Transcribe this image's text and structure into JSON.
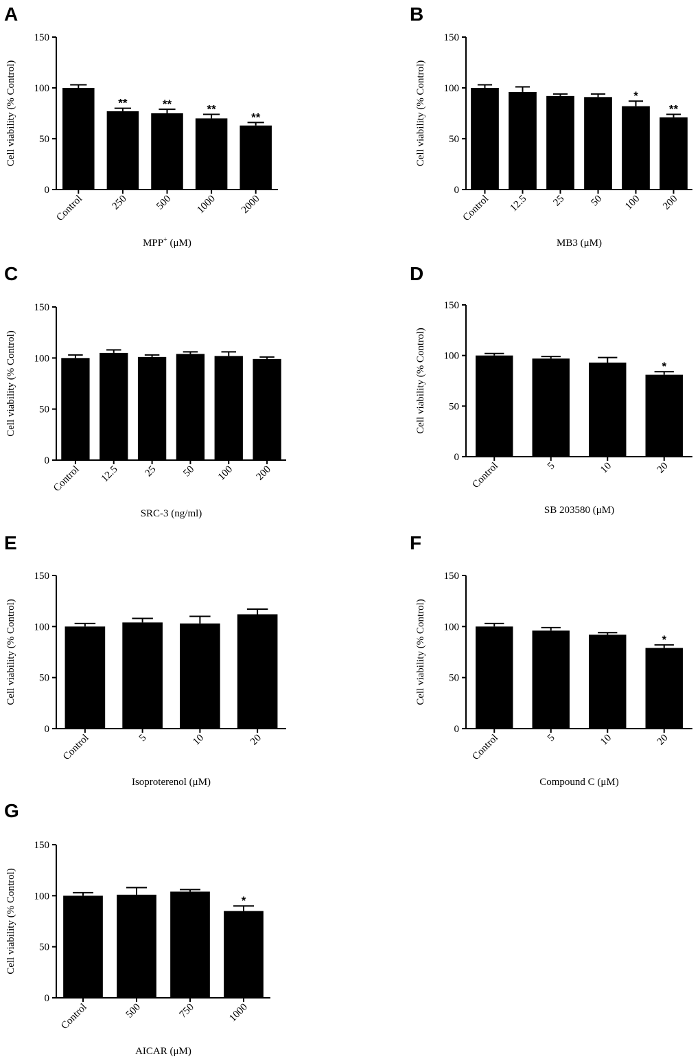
{
  "chart_data": [
    {
      "panel": "A",
      "type": "bar",
      "categories": [
        "Control",
        "250",
        "500",
        "1000",
        "2000"
      ],
      "values": [
        100,
        77,
        75,
        70,
        63
      ],
      "errors": [
        3,
        3,
        4,
        4,
        3
      ],
      "significance": [
        "",
        "**",
        "**",
        "**",
        "**"
      ],
      "xlabel": "MPP",
      "xlabel_sup": "+",
      "xlabel_after": " (μM)",
      "ylabel": "Cell viability (% Control)",
      "ylim": [
        0,
        150
      ],
      "yticks": [
        0,
        50,
        100,
        150
      ]
    },
    {
      "panel": "B",
      "type": "bar",
      "categories": [
        "Control",
        "12.5",
        "25",
        "50",
        "100",
        "200"
      ],
      "values": [
        100,
        96,
        92,
        91,
        82,
        71
      ],
      "errors": [
        3,
        5,
        2,
        3,
        5,
        3
      ],
      "significance": [
        "",
        "",
        "",
        "",
        "*",
        "**"
      ],
      "xlabel": "MB3  (μM)",
      "ylabel": "Cell viability (% Control)",
      "ylim": [
        0,
        150
      ],
      "yticks": [
        0,
        50,
        100,
        150
      ]
    },
    {
      "panel": "C",
      "type": "bar",
      "categories": [
        "Control",
        "12.5",
        "25",
        "50",
        "100",
        "200"
      ],
      "values": [
        100,
        105,
        101,
        104,
        102,
        99
      ],
      "errors": [
        3,
        3,
        2,
        2,
        4,
        2
      ],
      "significance": [
        "",
        "",
        "",
        "",
        "",
        ""
      ],
      "xlabel": "SRC-3 (ng/ml)",
      "ylabel": "Cell viability (% Control)",
      "ylim": [
        0,
        150
      ],
      "yticks": [
        0,
        50,
        100,
        150
      ]
    },
    {
      "panel": "D",
      "type": "bar",
      "categories": [
        "Control",
        "5",
        "10",
        "20"
      ],
      "values": [
        100,
        97,
        93,
        81
      ],
      "errors": [
        2,
        2,
        5,
        3
      ],
      "significance": [
        "",
        "",
        "",
        "*"
      ],
      "xlabel": "SB 203580  (μM)",
      "ylabel": "Cell viability (% Control)",
      "ylim": [
        0,
        150
      ],
      "yticks": [
        0,
        50,
        100,
        150
      ]
    },
    {
      "panel": "E",
      "type": "bar",
      "categories": [
        "Control",
        "5",
        "10",
        "20"
      ],
      "values": [
        100,
        104,
        103,
        112
      ],
      "errors": [
        3,
        4,
        7,
        5
      ],
      "significance": [
        "",
        "",
        "",
        ""
      ],
      "xlabel": "Isoproterenol  (μM)",
      "ylabel": "Cell viability (% Control)",
      "ylim": [
        0,
        150
      ],
      "yticks": [
        0,
        50,
        100,
        150
      ]
    },
    {
      "panel": "F",
      "type": "bar",
      "categories": [
        "Control",
        "5",
        "10",
        "20"
      ],
      "values": [
        100,
        96,
        92,
        79
      ],
      "errors": [
        3,
        3,
        2,
        3
      ],
      "significance": [
        "",
        "",
        "",
        "*"
      ],
      "xlabel": "Compound C  (μM)",
      "ylabel": "Cell viability (% Control)",
      "ylim": [
        0,
        150
      ],
      "yticks": [
        0,
        50,
        100,
        150
      ]
    },
    {
      "panel": "G",
      "type": "bar",
      "categories": [
        "Control",
        "500",
        "750",
        "1000"
      ],
      "values": [
        100,
        101,
        104,
        85
      ],
      "errors": [
        3,
        7,
        2,
        5
      ],
      "significance": [
        "",
        "",
        "",
        "*"
      ],
      "xlabel": "AICAR  (μM)",
      "ylabel": "Cell viability (% Control)",
      "ylim": [
        0,
        150
      ],
      "yticks": [
        0,
        50,
        100,
        150
      ]
    }
  ],
  "colors": {
    "bar": "#000000",
    "axis": "#000000",
    "background": "#ffffff"
  }
}
